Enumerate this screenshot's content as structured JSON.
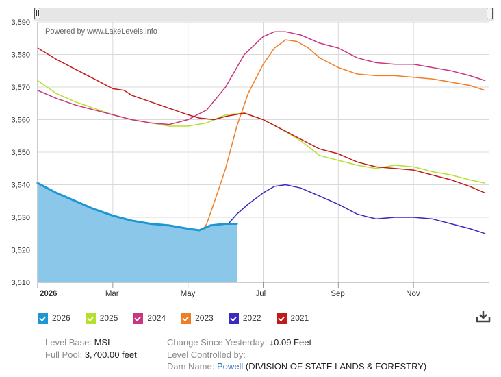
{
  "watermark": "Powered by www.LakeLevels.info",
  "chart_data": {
    "type": "line",
    "ylim": [
      3510,
      3590
    ],
    "yticks": [
      3510,
      3520,
      3530,
      3540,
      3550,
      3560,
      3570,
      3580,
      3590
    ],
    "ytick_labels": [
      "3,510",
      "3,520",
      "3,530",
      "3,540",
      "3,550",
      "3,560",
      "3,570",
      "3,580",
      "3,590"
    ],
    "xlim": [
      0,
      12
    ],
    "xticks": [
      {
        "label": "2026",
        "month": 0,
        "bold": true
      },
      {
        "label": "Mar",
        "month": 2,
        "bold": false
      },
      {
        "label": "May",
        "month": 4,
        "bold": false
      },
      {
        "label": "Jul",
        "month": 6,
        "bold": false
      },
      {
        "label": "Sep",
        "month": 8,
        "bold": false
      },
      {
        "label": "Nov",
        "month": 10,
        "bold": false
      }
    ],
    "grid": true,
    "series": [
      {
        "name": "2026",
        "color": "#1f96d4",
        "fill": "#8ac7e8",
        "points": [
          [
            0,
            3540.5
          ],
          [
            0.5,
            3537.5
          ],
          [
            1,
            3535
          ],
          [
            1.5,
            3532.5
          ],
          [
            2,
            3530.5
          ],
          [
            2.5,
            3529
          ],
          [
            3,
            3528
          ],
          [
            3.5,
            3527.5
          ],
          [
            4,
            3526.5
          ],
          [
            4.3,
            3526
          ],
          [
            4.6,
            3527.5
          ],
          [
            5,
            3528
          ],
          [
            5.3,
            3528
          ]
        ]
      },
      {
        "name": "2025",
        "color": "#b5e02b",
        "points": [
          [
            0,
            3572
          ],
          [
            0.5,
            3568
          ],
          [
            1,
            3565.5
          ],
          [
            1.5,
            3563.5
          ],
          [
            2,
            3561.5
          ],
          [
            2.5,
            3560
          ],
          [
            3,
            3559
          ],
          [
            3.5,
            3558
          ],
          [
            4,
            3558
          ],
          [
            4.5,
            3559
          ],
          [
            5,
            3561.5
          ],
          [
            5.5,
            3562
          ],
          [
            6,
            3560
          ],
          [
            6.5,
            3557
          ],
          [
            7,
            3553.5
          ],
          [
            7.5,
            3549
          ],
          [
            8,
            3547.5
          ],
          [
            8.5,
            3546
          ],
          [
            9,
            3545
          ],
          [
            9.5,
            3546
          ],
          [
            10,
            3545.5
          ],
          [
            10.5,
            3544
          ],
          [
            11,
            3543
          ],
          [
            11.5,
            3541.5
          ],
          [
            11.9,
            3540.5
          ]
        ]
      },
      {
        "name": "2024",
        "color": "#c8367f",
        "points": [
          [
            0,
            3569
          ],
          [
            0.5,
            3566.5
          ],
          [
            1,
            3564.5
          ],
          [
            1.5,
            3563
          ],
          [
            2,
            3561.5
          ],
          [
            2.5,
            3560
          ],
          [
            3,
            3559
          ],
          [
            3.5,
            3558.5
          ],
          [
            4,
            3560
          ],
          [
            4.5,
            3563
          ],
          [
            5,
            3570
          ],
          [
            5.5,
            3580
          ],
          [
            6,
            3585.5
          ],
          [
            6.3,
            3587
          ],
          [
            6.6,
            3587
          ],
          [
            7,
            3586
          ],
          [
            7.5,
            3583.5
          ],
          [
            8,
            3582
          ],
          [
            8.5,
            3579
          ],
          [
            9,
            3577.5
          ],
          [
            9.5,
            3577
          ],
          [
            10,
            3577
          ],
          [
            10.5,
            3576
          ],
          [
            11,
            3575
          ],
          [
            11.5,
            3573.5
          ],
          [
            11.9,
            3572
          ]
        ]
      },
      {
        "name": "2023",
        "color": "#f07e26",
        "points": [
          [
            0,
            3524.5
          ],
          [
            0.5,
            3524
          ],
          [
            1,
            3523
          ],
          [
            1.5,
            3522
          ],
          [
            2,
            3521
          ],
          [
            2.5,
            3520.5
          ],
          [
            2.9,
            3522
          ],
          [
            3.2,
            3521.5
          ],
          [
            3.4,
            3520
          ],
          [
            3.6,
            3520
          ],
          [
            3.8,
            3522
          ],
          [
            4,
            3525
          ],
          [
            4.2,
            3523
          ],
          [
            4.5,
            3528
          ],
          [
            4.8,
            3538
          ],
          [
            5,
            3545
          ],
          [
            5.3,
            3558
          ],
          [
            5.6,
            3568
          ],
          [
            6,
            3577
          ],
          [
            6.3,
            3582
          ],
          [
            6.6,
            3584.5
          ],
          [
            6.9,
            3584
          ],
          [
            7.2,
            3582
          ],
          [
            7.5,
            3579
          ],
          [
            8,
            3576
          ],
          [
            8.5,
            3574
          ],
          [
            9,
            3573.5
          ],
          [
            9.5,
            3573.5
          ],
          [
            10,
            3573
          ],
          [
            10.5,
            3572.5
          ],
          [
            11,
            3571.5
          ],
          [
            11.5,
            3570.5
          ],
          [
            11.9,
            3569
          ]
        ]
      },
      {
        "name": "2022",
        "color": "#3a2bc0",
        "points": [
          [
            0,
            3537.5
          ],
          [
            0.5,
            3534
          ],
          [
            1,
            3531.5
          ],
          [
            1.5,
            3529
          ],
          [
            2,
            3527
          ],
          [
            2.5,
            3525
          ],
          [
            3,
            3523.5
          ],
          [
            3.5,
            3523
          ],
          [
            4,
            3522.5
          ],
          [
            4.4,
            3523
          ],
          [
            4.7,
            3524.5
          ],
          [
            5,
            3527
          ],
          [
            5.3,
            3531
          ],
          [
            5.6,
            3534
          ],
          [
            6,
            3537.5
          ],
          [
            6.3,
            3539.5
          ],
          [
            6.6,
            3540
          ],
          [
            7,
            3539
          ],
          [
            7.5,
            3536.5
          ],
          [
            8,
            3534
          ],
          [
            8.5,
            3531
          ],
          [
            9,
            3529.5
          ],
          [
            9.5,
            3530
          ],
          [
            10,
            3530
          ],
          [
            10.5,
            3529.5
          ],
          [
            11,
            3528
          ],
          [
            11.5,
            3526.5
          ],
          [
            11.9,
            3525
          ]
        ]
      },
      {
        "name": "2021",
        "color": "#c11a1a",
        "points": [
          [
            0,
            3582
          ],
          [
            0.5,
            3578.5
          ],
          [
            1,
            3575.5
          ],
          [
            1.5,
            3572.5
          ],
          [
            2,
            3569.5
          ],
          [
            2.3,
            3569
          ],
          [
            2.5,
            3567.5
          ],
          [
            3,
            3565.5
          ],
          [
            3.5,
            3563.5
          ],
          [
            4,
            3561.5
          ],
          [
            4.3,
            3560.5
          ],
          [
            4.7,
            3560
          ],
          [
            5,
            3561
          ],
          [
            5.5,
            3562
          ],
          [
            6,
            3560
          ],
          [
            6.5,
            3557
          ],
          [
            7,
            3554
          ],
          [
            7.5,
            3551
          ],
          [
            8,
            3549.5
          ],
          [
            8.5,
            3547
          ],
          [
            9,
            3545.5
          ],
          [
            9.5,
            3545
          ],
          [
            10,
            3544.5
          ],
          [
            10.5,
            3543
          ],
          [
            11,
            3541.5
          ],
          [
            11.5,
            3539.5
          ],
          [
            11.9,
            3537.5
          ]
        ]
      }
    ]
  },
  "legend": [
    {
      "label": "2026",
      "color": "#1f96d4"
    },
    {
      "label": "2025",
      "color": "#b5e02b"
    },
    {
      "label": "2024",
      "color": "#c8367f"
    },
    {
      "label": "2023",
      "color": "#f07e26"
    },
    {
      "label": "2022",
      "color": "#3a2bc0"
    },
    {
      "label": "2021",
      "color": "#c11a1a"
    }
  ],
  "info": {
    "level_base_label": "Level Base:",
    "level_base_value": "MSL",
    "full_pool_label": "Full Pool:",
    "full_pool_value": "3,700.00 feet",
    "change_label": "Change Since Yesterday:",
    "change_value": "↓0.09 Feet",
    "controlled_label": "Level Controlled by:",
    "dam_label": "Dam Name:",
    "dam_name": "Powell",
    "dam_agency": " (DIVISION OF STATE LANDS & FORESTRY)"
  },
  "icons": {
    "download": "download-icon",
    "scroll_left": "scroll-handle-left",
    "scroll_right": "scroll-handle-right"
  }
}
